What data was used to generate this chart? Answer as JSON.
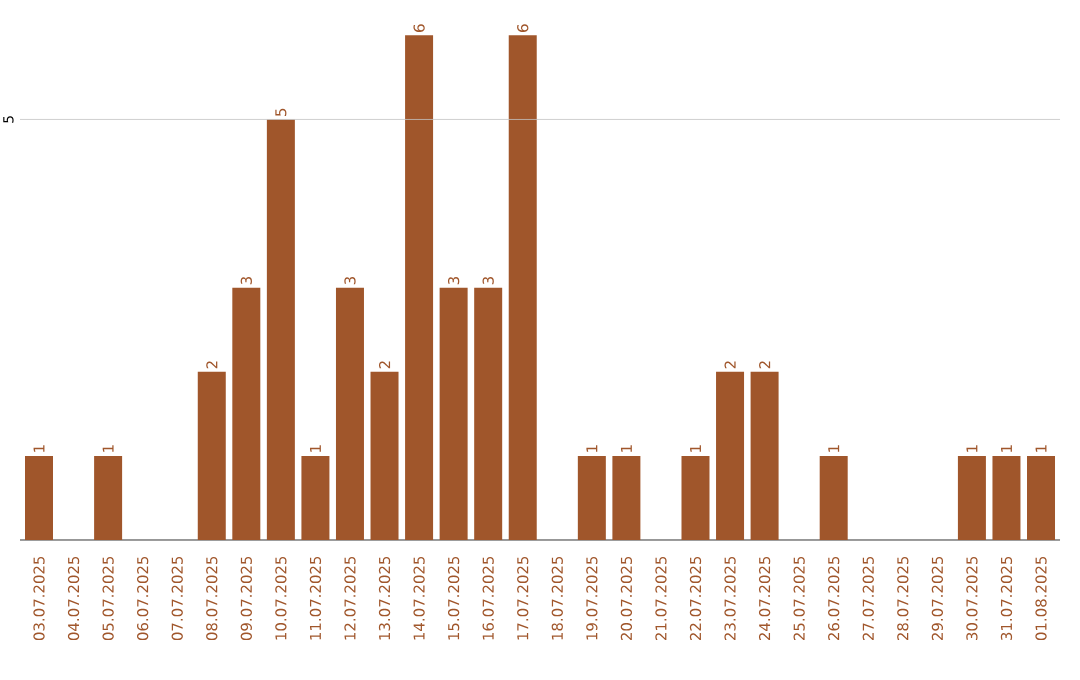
{
  "chart_data": {
    "type": "bar",
    "categories": [
      "03.07.2025",
      "04.07.2025",
      "05.07.2025",
      "06.07.2025",
      "07.07.2025",
      "08.07.2025",
      "09.07.2025",
      "10.07.2025",
      "11.07.2025",
      "12.07.2025",
      "13.07.2025",
      "14.07.2025",
      "15.07.2025",
      "16.07.2025",
      "17.07.2025",
      "18.07.2025",
      "19.07.2025",
      "20.07.2025",
      "21.07.2025",
      "22.07.2025",
      "23.07.2025",
      "24.07.2025",
      "25.07.2025",
      "26.07.2025",
      "27.07.2025",
      "28.07.2025",
      "29.07.2025",
      "30.07.2025",
      "31.07.2025",
      "01.08.2025"
    ],
    "values": [
      1,
      0,
      1,
      0,
      0,
      2,
      3,
      5,
      1,
      3,
      2,
      6,
      3,
      3,
      6,
      0,
      1,
      1,
      0,
      1,
      2,
      2,
      0,
      1,
      0,
      0,
      0,
      1,
      1,
      1
    ],
    "value_labels": [
      "1",
      null,
      "1",
      null,
      null,
      "2",
      "3",
      "5",
      "1",
      "3",
      "2",
      "6",
      "3",
      "3",
      "6",
      null,
      "1",
      "1",
      null,
      "1",
      "2",
      "2",
      null,
      "1",
      null,
      null,
      null,
      "1",
      "1",
      "1"
    ],
    "color": "#a0562b",
    "ref_lines": [
      {
        "axis": "y",
        "value": 5,
        "label": "5",
        "color": "#c4c4c4"
      }
    ]
  }
}
